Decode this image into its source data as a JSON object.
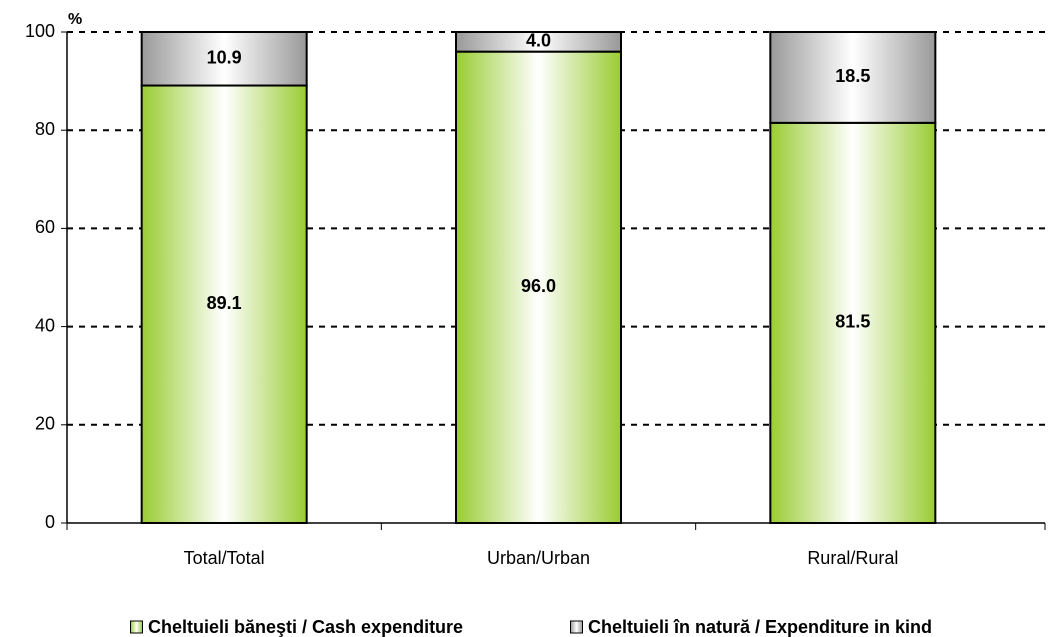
{
  "chart_data": {
    "type": "stacked_bar",
    "y_axis_label": "%",
    "categories": [
      "Total/Total",
      "Urban/Urban",
      "Rural/Rural"
    ],
    "series": [
      {
        "name": "Cheltuieli băneşti / Cash expenditure",
        "color": "#99cc33",
        "values": [
          89.1,
          96,
          81.5
        ],
        "value_labels": [
          "89.1",
          "96.0",
          "81.5"
        ]
      },
      {
        "name": "Cheltuieli în natură / Expenditure in kind",
        "color": "#999999",
        "values": [
          10.9,
          4,
          18.5
        ],
        "value_labels": [
          "10.9",
          "4.0",
          "18.5"
        ]
      }
    ],
    "ylim": [
      0,
      100
    ],
    "yticks": [
      0,
      20,
      40,
      60,
      80,
      100
    ],
    "grid": true
  }
}
